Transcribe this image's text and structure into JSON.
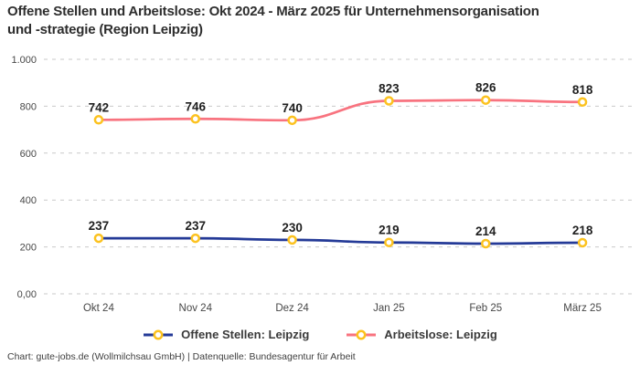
{
  "header": {
    "title": "Offene Stellen und Arbeitslose: Okt 2024 - März 2025 für Unternehmensorganisation\nund -strategie (Region Leipzig)"
  },
  "chart_data": {
    "type": "line",
    "title": "Offene Stellen und Arbeitslose: Okt 2024 - März 2025 für Unternehmensorganisation und -strategie (Region Leipzig)",
    "categories": [
      "Okt 24",
      "Nov 24",
      "Dez 24",
      "Jan 25",
      "Feb 25",
      "März 25"
    ],
    "series": [
      {
        "name": "Offene Stellen: Leipzig",
        "values": [
          237,
          237,
          230,
          219,
          214,
          218
        ],
        "color": "#243a97"
      },
      {
        "name": "Arbeitslose: Leipzig",
        "values": [
          742,
          746,
          740,
          823,
          826,
          818
        ],
        "color": "#f8737f"
      }
    ],
    "marker": {
      "ring_color": "#fcc21f",
      "fill_color": "#ffffff"
    },
    "y_ticks": [
      {
        "label": "0,00",
        "value": 0
      },
      {
        "label": "200",
        "value": 200
      },
      {
        "label": "400",
        "value": 400
      },
      {
        "label": "600",
        "value": 600
      },
      {
        "label": "800",
        "value": 800
      },
      {
        "label": "1.000",
        "value": 1000
      }
    ],
    "ylim": [
      0,
      1000
    ],
    "xlabel": "",
    "ylabel": "",
    "grid": "horizontal-dashed",
    "grid_color": "#c9c9c9",
    "data_labels": true,
    "label_color": "#1f1f1f",
    "axis_text_color": "#474747",
    "legend_position": "bottom"
  },
  "footer": {
    "credit": "Chart: gute-jobs.de (Wollmilchsau GmbH) | Datenquelle: Bundesagentur für Arbeit"
  }
}
